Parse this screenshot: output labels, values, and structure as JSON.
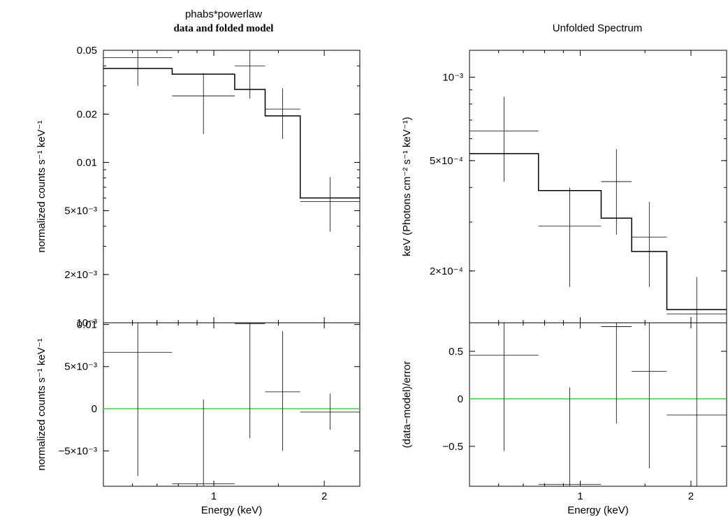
{
  "colors": {
    "axes": "#000000",
    "data": "#000000",
    "zero_line": "#33dd33",
    "background": "#ffffff"
  },
  "chart_data": [
    {
      "id": "left-top",
      "type": "line",
      "title": "phabs*powerlaw",
      "subtitle": "data and folded model",
      "ylabel": "normalized counts s⁻¹ keV⁻¹",
      "xlabel": "",
      "xscale": "log",
      "yscale": "log",
      "xlim": [
        0.5,
        2.5
      ],
      "ylim": [
        0.001,
        0.05
      ],
      "y_ticks": [
        {
          "value": 0.05,
          "label": "0.05"
        },
        {
          "value": 0.02,
          "label": "0.02"
        },
        {
          "value": 0.01,
          "label": "0.01"
        },
        {
          "value": 0.005,
          "label": "5×10⁻³"
        },
        {
          "value": 0.002,
          "label": "2×10⁻³"
        },
        {
          "value": 0.001,
          "label": "10⁻³"
        }
      ],
      "data_points": [
        {
          "xlo": 0.5,
          "xhi": 0.77,
          "y": 0.045,
          "ylo": 0.03,
          "yhi": 0.058
        },
        {
          "xlo": 0.77,
          "xhi": 1.14,
          "y": 0.026,
          "ylo": 0.015,
          "yhi": 0.036
        },
        {
          "xlo": 1.14,
          "xhi": 1.38,
          "y": 0.04,
          "ylo": 0.025,
          "yhi": 0.054
        },
        {
          "xlo": 1.38,
          "xhi": 1.72,
          "y": 0.0215,
          "ylo": 0.014,
          "yhi": 0.029
        },
        {
          "xlo": 1.72,
          "xhi": 2.5,
          "y": 0.0057,
          "ylo": 0.0037,
          "yhi": 0.0081
        }
      ],
      "model_steps": [
        {
          "xlo": 0.5,
          "xhi": 0.77,
          "y": 0.0385
        },
        {
          "xlo": 0.77,
          "xhi": 1.14,
          "y": 0.0355
        },
        {
          "xlo": 1.14,
          "xhi": 1.38,
          "y": 0.0285
        },
        {
          "xlo": 1.38,
          "xhi": 1.72,
          "y": 0.0195
        },
        {
          "xlo": 1.72,
          "xhi": 2.5,
          "y": 0.006
        }
      ]
    },
    {
      "id": "left-bottom",
      "type": "line",
      "title": "",
      "ylabel": "normalized counts s⁻¹ keV⁻¹",
      "xlabel": "Energy (keV)",
      "xscale": "log",
      "yscale": "linear",
      "xlim": [
        0.5,
        2.5
      ],
      "ylim": [
        -0.0092,
        0.0102
      ],
      "x_ticks": [
        {
          "value": 1,
          "label": "1"
        },
        {
          "value": 2,
          "label": "2"
        }
      ],
      "y_ticks": [
        {
          "value": 0.01,
          "label": "0.01"
        },
        {
          "value": 0.005,
          "label": "5×10⁻³"
        },
        {
          "value": 0,
          "label": "0"
        },
        {
          "value": -0.005,
          "label": "−5×10⁻³"
        }
      ],
      "zero_line": 0,
      "data_points": [
        {
          "xlo": 0.5,
          "xhi": 0.77,
          "y": 0.0067,
          "ylo": -0.008,
          "yhi": 0.0102
        },
        {
          "xlo": 0.77,
          "xhi": 1.14,
          "y": -0.0089,
          "ylo": -0.0092,
          "yhi": 0.0011
        },
        {
          "xlo": 1.14,
          "xhi": 1.38,
          "y": 0.0101,
          "ylo": -0.0035,
          "yhi": 0.0102
        },
        {
          "xlo": 1.38,
          "xhi": 1.72,
          "y": 0.002,
          "ylo": -0.005,
          "yhi": 0.0092
        },
        {
          "xlo": 1.72,
          "xhi": 2.5,
          "y": -0.0004,
          "ylo": -0.0025,
          "yhi": 0.0018
        }
      ]
    },
    {
      "id": "right-top",
      "type": "line",
      "title": "Unfolded Spectrum",
      "ylabel": "keV (Photons cm⁻² s⁻¹ keV⁻¹)",
      "xlabel": "",
      "xscale": "log",
      "yscale": "log",
      "xlim": [
        0.5,
        2.5
      ],
      "ylim": [
        0.00013,
        0.00125
      ],
      "y_ticks": [
        {
          "value": 0.001,
          "label": "10⁻³"
        },
        {
          "value": 0.0005,
          "label": "5×10⁻⁴"
        },
        {
          "value": 0.0002,
          "label": "2×10⁻⁴"
        }
      ],
      "data_points": [
        {
          "xlo": 0.5,
          "xhi": 0.77,
          "y": 0.00064,
          "ylo": 0.00042,
          "yhi": 0.00085
        },
        {
          "xlo": 0.77,
          "xhi": 1.14,
          "y": 0.00029,
          "ylo": 0.000175,
          "yhi": 0.0004
        },
        {
          "xlo": 1.14,
          "xhi": 1.38,
          "y": 0.00042,
          "ylo": 0.00027,
          "yhi": 0.00055
        },
        {
          "xlo": 1.38,
          "xhi": 1.72,
          "y": 0.000265,
          "ylo": 0.000175,
          "yhi": 0.000355
        },
        {
          "xlo": 1.72,
          "xhi": 2.5,
          "y": 0.00014,
          "ylo": 0.00013,
          "yhi": 0.00019
        }
      ],
      "model_steps": [
        {
          "xlo": 0.5,
          "xhi": 0.77,
          "y": 0.00053
        },
        {
          "xlo": 0.77,
          "xhi": 1.14,
          "y": 0.00039
        },
        {
          "xlo": 1.14,
          "xhi": 1.38,
          "y": 0.00031
        },
        {
          "xlo": 1.38,
          "xhi": 1.72,
          "y": 0.000235
        },
        {
          "xlo": 1.72,
          "xhi": 2.5,
          "y": 0.000145
        }
      ]
    },
    {
      "id": "right-bottom",
      "type": "line",
      "title": "",
      "ylabel": "(data−model)/error",
      "xlabel": "Energy (keV)",
      "xscale": "log",
      "yscale": "linear",
      "xlim": [
        0.5,
        2.5
      ],
      "ylim": [
        -0.92,
        0.8
      ],
      "x_ticks": [
        {
          "value": 1,
          "label": "1"
        },
        {
          "value": 2,
          "label": "2"
        }
      ],
      "y_ticks": [
        {
          "value": 0.5,
          "label": "0.5"
        },
        {
          "value": 0,
          "label": "0"
        },
        {
          "value": -0.5,
          "label": "−0.5"
        }
      ],
      "zero_line": 0,
      "data_points": [
        {
          "xlo": 0.5,
          "xhi": 0.77,
          "y": 0.46,
          "ylo": -0.55,
          "yhi": 0.8
        },
        {
          "xlo": 0.77,
          "xhi": 1.14,
          "y": -0.9,
          "ylo": -0.92,
          "yhi": 0.12
        },
        {
          "xlo": 1.14,
          "xhi": 1.38,
          "y": 0.76,
          "ylo": -0.26,
          "yhi": 0.8
        },
        {
          "xlo": 1.38,
          "xhi": 1.72,
          "y": 0.29,
          "ylo": -0.73,
          "yhi": 0.8
        },
        {
          "xlo": 1.72,
          "xhi": 2.5,
          "y": -0.17,
          "ylo": -0.92,
          "yhi": 0.8
        }
      ]
    }
  ]
}
